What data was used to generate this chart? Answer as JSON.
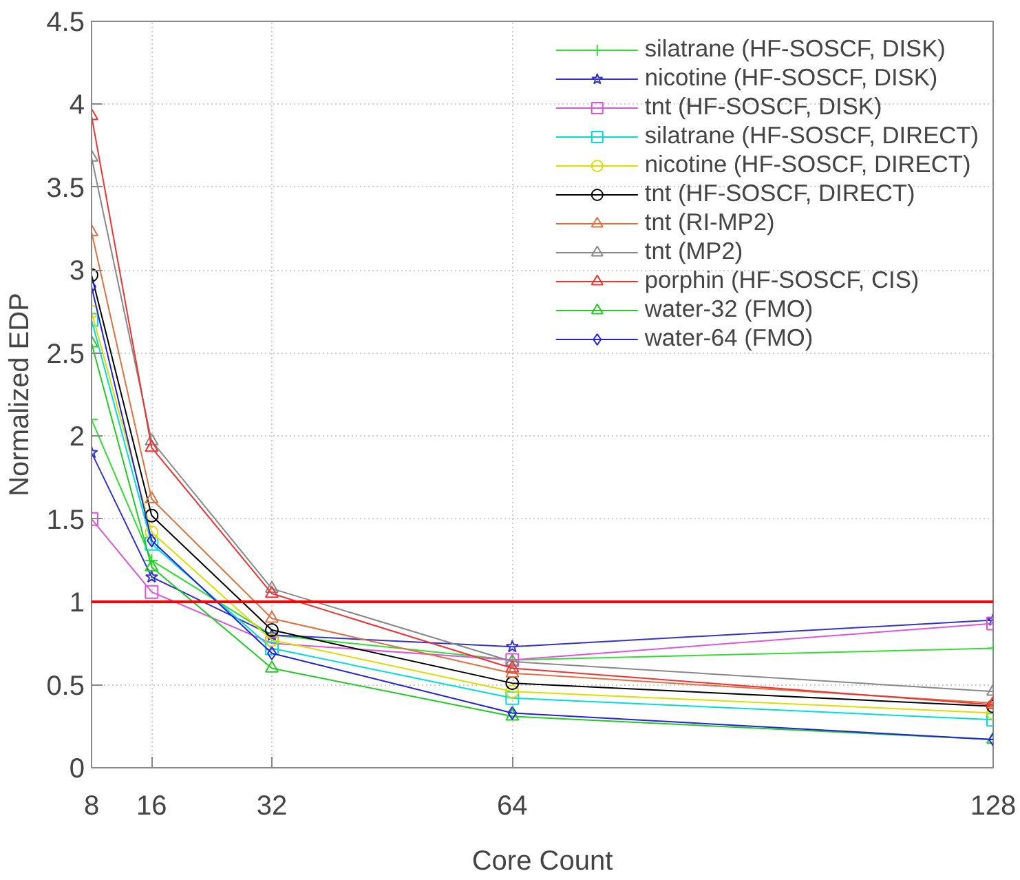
{
  "chart_data": {
    "type": "line",
    "xlabel": "Core Count",
    "ylabel": "Normalized EDP",
    "x": [
      8,
      16,
      32,
      64,
      128
    ],
    "xlim": [
      8,
      128
    ],
    "xticks": [
      8,
      16,
      32,
      64,
      128
    ],
    "ylim": [
      0,
      4.5
    ],
    "yticks": [
      0,
      0.5,
      1,
      1.5,
      2,
      2.5,
      3,
      3.5,
      4,
      4.5
    ],
    "grid": true,
    "legend": "top right",
    "ref_lines": [
      {
        "axis": "y",
        "value": 1,
        "color": "#ff0000"
      }
    ],
    "series": [
      {
        "name": "silatrane (HF-SOSCF, DISK)",
        "color": "#33dd33",
        "marker": "cross",
        "values": [
          2.1,
          1.25,
          0.8,
          0.65,
          0.72
        ]
      },
      {
        "name": "nicotine (HF-SOSCF, DISK)",
        "color": "#3333cc",
        "marker": "star",
        "values": [
          1.9,
          1.15,
          0.8,
          0.73,
          0.89
        ]
      },
      {
        "name": "tnt (HF-SOSCF, DISK)",
        "color": "#dd55dd",
        "marker": "square",
        "values": [
          1.5,
          1.06,
          0.75,
          0.65,
          0.87
        ]
      },
      {
        "name": "silatrane (HF-SOSCF, DIRECT)",
        "color": "#00dddd",
        "marker": "square",
        "values": [
          2.7,
          1.35,
          0.72,
          0.42,
          0.29
        ]
      },
      {
        "name": "nicotine (HF-SOSCF, DIRECT)",
        "color": "#dddd00",
        "marker": "circle",
        "values": [
          2.75,
          1.42,
          0.77,
          0.46,
          0.33
        ]
      },
      {
        "name": "tnt (HF-SOSCF, DIRECT)",
        "color": "#000000",
        "marker": "circle",
        "values": [
          2.97,
          1.52,
          0.83,
          0.51,
          0.37
        ]
      },
      {
        "name": "tnt (RI-MP2)",
        "color": "#e07040",
        "marker": "triangle",
        "values": [
          3.23,
          1.62,
          0.9,
          0.57,
          0.39
        ]
      },
      {
        "name": "tnt (MP2)",
        "color": "#888888",
        "marker": "triangle",
        "values": [
          3.68,
          1.97,
          1.08,
          0.64,
          0.46
        ]
      },
      {
        "name": "porphin (HF-SOSCF, CIS)",
        "color": "#ee3333",
        "marker": "triangle",
        "values": [
          3.93,
          1.93,
          1.05,
          0.6,
          0.38
        ]
      },
      {
        "name": "water-32 (FMO)",
        "color": "#22cc22",
        "marker": "triangle",
        "values": [
          2.56,
          1.21,
          0.6,
          0.31,
          0.17
        ]
      },
      {
        "name": "water-64 (FMO)",
        "color": "#2222dd",
        "marker": "diamond",
        "values": [
          2.9,
          1.37,
          0.69,
          0.33,
          0.17
        ]
      }
    ]
  }
}
